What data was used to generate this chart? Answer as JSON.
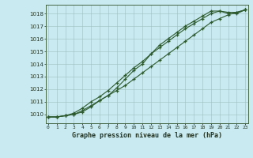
{
  "title": "Graphe pression niveau de la mer (hPa)",
  "bg_color": "#c8eaf0",
  "grid_color": "#9dbfbf",
  "line_color": "#2d5a2d",
  "x_labels": [
    "0",
    "1",
    "2",
    "3",
    "4",
    "5",
    "6",
    "7",
    "8",
    "9",
    "10",
    "11",
    "12",
    "13",
    "14",
    "15",
    "16",
    "17",
    "18",
    "19",
    "20",
    "21",
    "22",
    "23"
  ],
  "xlim": [
    -0.3,
    23.3
  ],
  "ylim": [
    1009.3,
    1018.7
  ],
  "yticks": [
    1010,
    1011,
    1012,
    1013,
    1014,
    1015,
    1016,
    1017,
    1018
  ],
  "series": [
    [
      1009.8,
      1009.8,
      1009.9,
      1010.0,
      1010.3,
      1010.7,
      1011.1,
      1011.5,
      1011.9,
      1012.3,
      1012.8,
      1013.3,
      1013.8,
      1014.3,
      1014.8,
      1015.3,
      1015.8,
      1016.3,
      1016.8,
      1017.3,
      1017.6,
      1017.9,
      1018.1,
      1018.3
    ],
    [
      1009.8,
      1009.8,
      1009.9,
      1010.1,
      1010.5,
      1011.0,
      1011.4,
      1011.9,
      1012.5,
      1013.1,
      1013.7,
      1014.2,
      1014.8,
      1015.3,
      1015.8,
      1016.3,
      1016.8,
      1017.2,
      1017.6,
      1018.0,
      1018.2,
      1018.1,
      1018.1,
      1018.3
    ],
    [
      1009.8,
      1009.8,
      1009.9,
      1010.0,
      1010.2,
      1010.6,
      1011.1,
      1011.5,
      1012.1,
      1012.8,
      1013.5,
      1014.0,
      1014.8,
      1015.5,
      1016.0,
      1016.5,
      1017.0,
      1017.4,
      1017.8,
      1018.2,
      1018.2,
      1018.0,
      1018.0,
      1018.3
    ]
  ]
}
